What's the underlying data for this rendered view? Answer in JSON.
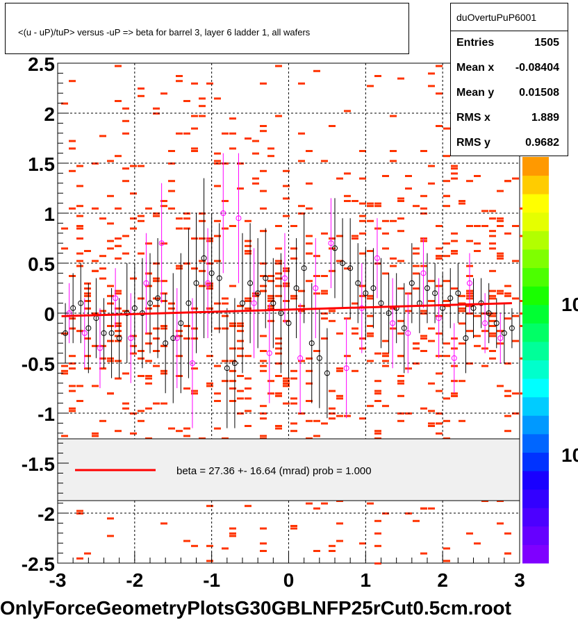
{
  "header": {
    "title": "<(u - uP)/tuP> versus  -uP => beta for barrel 3, layer 6 ladder 1, all wafers"
  },
  "stats": {
    "name": "duOvertuPuP6001",
    "rows": [
      {
        "label": "Entries",
        "value": "1505"
      },
      {
        "label": "Mean x",
        "value": "-0.08404"
      },
      {
        "label": "Mean y",
        "value": "0.01508"
      },
      {
        "label": "RMS x",
        "value": "1.889"
      },
      {
        "label": "RMS y",
        "value": "0.9682"
      }
    ]
  },
  "legend": {
    "text": "beta =   27.36 +- 16.64 (mrad) prob = 1.000",
    "line_color": "#ff0000"
  },
  "footer": {
    "filename": "OnlyForceGeometryPlotsG30GBLNFP25rCut0.5cm.root"
  },
  "colors": {
    "histogram_cells": "#ff3300",
    "profile_black": "#000000",
    "profile_magenta": "#ff00ff",
    "fit_line": "#ff0000"
  },
  "palette": {
    "colors": [
      "#7f00ff",
      "#6600ff",
      "#4c00ff",
      "#3300ff",
      "#1900ff",
      "#0033ff",
      "#0066ff",
      "#0099ff",
      "#00ccff",
      "#00ffff",
      "#00ffcc",
      "#00ff99",
      "#00ff66",
      "#00ff33",
      "#19ff00",
      "#4cff00",
      "#7fff00",
      "#b2ff00",
      "#e5ff00",
      "#ffff00",
      "#ffcc00",
      "#ff9900"
    ],
    "labels": [
      "10",
      "10"
    ]
  },
  "chart_data": {
    "type": "scatter",
    "title": "<(u - uP)/tuP> versus  -uP => beta for barrel 3, layer 6 ladder 1, all wafers",
    "xlabel": "",
    "ylabel": "",
    "xlim": [
      -3,
      3
    ],
    "ylim": [
      -2.5,
      2.5
    ],
    "x_ticks": [
      "-3",
      "-2",
      "-1",
      "0",
      "1",
      "2",
      "3"
    ],
    "y_ticks": [
      "2.5",
      "2",
      "1.5",
      "1",
      "0.5",
      "0",
      "-0.5",
      "-1",
      "-1.5",
      "-2",
      "-2.5"
    ],
    "grid": true,
    "fit_line": {
      "x": [
        -2.95,
        2.9
      ],
      "y": [
        -0.03,
        0.1
      ]
    },
    "profile_black": {
      "x": [
        -2.9,
        -2.8,
        -2.7,
        -2.6,
        -2.5,
        -2.4,
        -2.3,
        -2.2,
        -2.1,
        -2.0,
        -1.9,
        -1.8,
        -1.7,
        -1.6,
        -1.5,
        -1.4,
        -1.3,
        -1.2,
        -1.1,
        -1.0,
        -0.9,
        -0.8,
        -0.7,
        -0.6,
        -0.5,
        -0.4,
        -0.3,
        -0.2,
        -0.1,
        0.0,
        0.1,
        0.2,
        0.3,
        0.4,
        0.5,
        0.6,
        0.7,
        0.8,
        0.9,
        1.0,
        1.1,
        1.2,
        1.3,
        1.4,
        1.5,
        1.6,
        1.7,
        1.8,
        1.9,
        2.0,
        2.1,
        2.2,
        2.3,
        2.4,
        2.5,
        2.6,
        2.7,
        2.8,
        2.9
      ],
      "y": [
        -0.2,
        0.05,
        0.1,
        -0.15,
        -0.05,
        -0.2,
        -0.2,
        -0.25,
        0.0,
        0.05,
        0.0,
        0.1,
        0.15,
        -0.3,
        -0.25,
        -0.1,
        0.1,
        0.3,
        0.55,
        0.4,
        0.35,
        -0.55,
        -0.5,
        0.1,
        0.3,
        0.2,
        0.35,
        0.1,
        0.0,
        -0.1,
        0.25,
        0.45,
        -0.3,
        -0.45,
        -0.6,
        0.65,
        0.5,
        0.45,
        0.3,
        0.2,
        0.25,
        0.1,
        0.0,
        0.05,
        -0.15,
        0.3,
        0.1,
        0.25,
        0.2,
        0.05,
        0.15,
        0.2,
        -0.25,
        0.05,
        0.1,
        0.0,
        -0.1,
        -0.2,
        -0.15
      ],
      "err": [
        0.3,
        0.35,
        0.4,
        0.45,
        0.4,
        0.35,
        0.45,
        0.4,
        0.5,
        0.45,
        0.55,
        0.5,
        0.6,
        0.5,
        0.65,
        0.7,
        0.75,
        0.7,
        0.8,
        0.6,
        0.55,
        0.6,
        0.65,
        0.7,
        0.6,
        0.55,
        0.5,
        0.45,
        0.6,
        0.55,
        0.5,
        0.55,
        0.6,
        0.5,
        0.45,
        0.5,
        0.45,
        0.5,
        0.4,
        0.45,
        0.4,
        0.45,
        0.4,
        0.35,
        0.45,
        0.4,
        0.3,
        0.35,
        0.3,
        0.35,
        0.3,
        0.3,
        0.35,
        0.3,
        0.25,
        0.3,
        0.25,
        0.3,
        0.2
      ]
    },
    "profile_magenta": {
      "x": [
        -2.85,
        -2.65,
        -2.45,
        -2.25,
        -2.05,
        -1.85,
        -1.65,
        -1.45,
        -1.25,
        -1.05,
        -0.85,
        -0.65,
        -0.45,
        -0.25,
        -0.05,
        0.15,
        0.35,
        0.55,
        0.75,
        0.95,
        1.15,
        1.35,
        1.55,
        1.75,
        1.95,
        2.15,
        2.35,
        2.55,
        2.75
      ],
      "y": [
        0.0,
        -0.2,
        -0.35,
        0.15,
        -0.25,
        0.3,
        0.7,
        -0.25,
        -0.5,
        0.3,
        1.0,
        0.95,
        0.1,
        -0.4,
        0.35,
        -0.45,
        0.25,
        0.7,
        -0.55,
        0.05,
        0.55,
        -0.1,
        -0.2,
        0.4,
        -0.05,
        -0.45,
        0.3,
        -0.1,
        -0.25
      ],
      "err": [
        0.3,
        0.35,
        0.4,
        0.3,
        0.45,
        0.5,
        0.6,
        0.5,
        0.65,
        0.55,
        0.6,
        0.65,
        0.55,
        0.5,
        0.45,
        0.55,
        0.5,
        0.45,
        0.5,
        0.45,
        0.4,
        0.45,
        0.4,
        0.35,
        0.4,
        0.35,
        0.3,
        0.3,
        0.25
      ]
    }
  }
}
